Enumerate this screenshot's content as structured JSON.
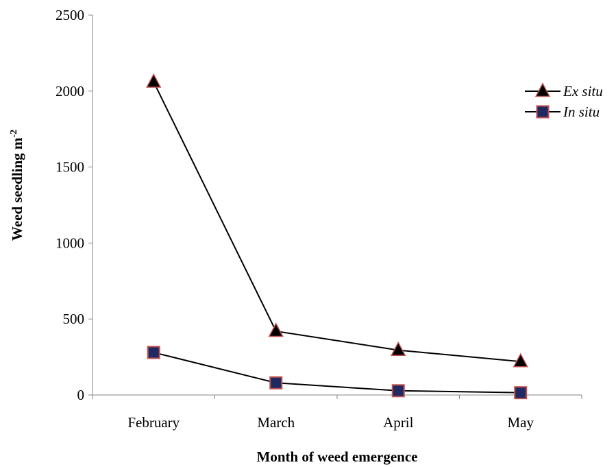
{
  "chart_data": {
    "type": "line",
    "title": "",
    "xlabel": "Month of weed emergence",
    "ylabel": "Weed seedling m",
    "ylabel_superscript": "-2",
    "categories": [
      "February",
      "March",
      "April",
      "May"
    ],
    "ylim": [
      0,
      2500
    ],
    "yticks": [
      0,
      500,
      1000,
      1500,
      2000,
      2500
    ],
    "grid": false,
    "legend_position": "right",
    "series": [
      {
        "name": "Ex situ",
        "marker": "triangle",
        "values": [
          2060,
          420,
          295,
          220
        ],
        "marker_fill": "#000000",
        "marker_stroke": "#c0504d"
      },
      {
        "name": "In situ",
        "marker": "square",
        "values": [
          280,
          80,
          28,
          15
        ],
        "marker_fill": "#1f2a63",
        "marker_stroke": "#c0504d"
      }
    ]
  }
}
